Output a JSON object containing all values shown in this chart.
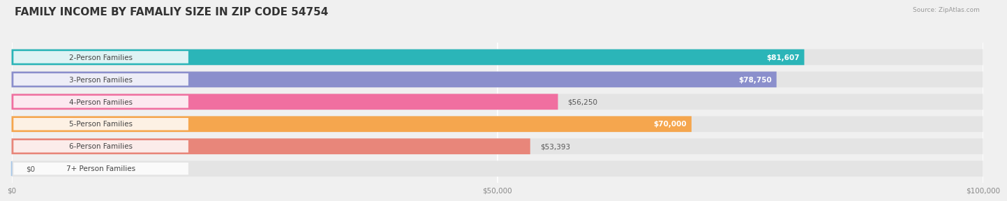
{
  "title": "FAMILY INCOME BY FAMALIY SIZE IN ZIP CODE 54754",
  "source": "Source: ZipAtlas.com",
  "categories": [
    "2-Person Families",
    "3-Person Families",
    "4-Person Families",
    "5-Person Families",
    "6-Person Families",
    "7+ Person Families"
  ],
  "values": [
    81607,
    78750,
    56250,
    70000,
    53393,
    0
  ],
  "bar_colors": [
    "#2bb5b8",
    "#8b8fcc",
    "#f06fa0",
    "#f5a64e",
    "#e8867a",
    "#a8c8e8"
  ],
  "bar_labels": [
    "$81,607",
    "$78,750",
    "$56,250",
    "$70,000",
    "$53,393",
    "$0"
  ],
  "label_inside": [
    true,
    true,
    false,
    true,
    false,
    false
  ],
  "xlim": [
    0,
    100000
  ],
  "xticks": [
    0,
    50000,
    100000
  ],
  "xtick_labels": [
    "$0",
    "$50,000",
    "$100,000"
  ],
  "background_color": "#f0f0f0",
  "bar_background_color": "#e4e4e4",
  "title_fontsize": 11,
  "category_fontsize": 7.5,
  "value_fontsize": 7.5
}
